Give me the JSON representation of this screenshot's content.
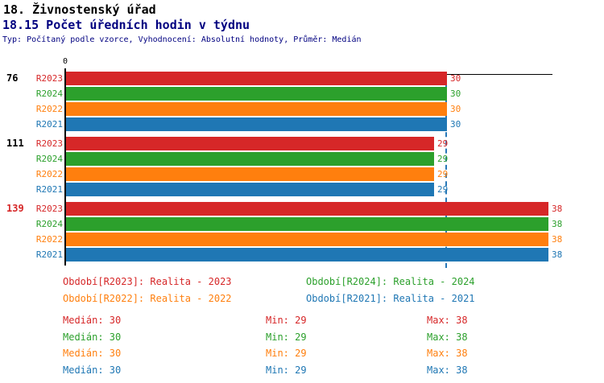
{
  "header": {
    "title_line1": "18. Živnostenský úřad",
    "title_line2": "18.15 Počet úředních hodin v týdnu",
    "meta": "Typ: Počítaný podle vzorce, Vyhodnocení: Absolutní hodnoty, Průměr: Medián"
  },
  "colors": {
    "R2023": "#d62728",
    "R2024": "#2ca02c",
    "R2022": "#ff7f0e",
    "R2021": "#1f77b4",
    "median_line": "#2878b8",
    "axis": "#000000",
    "title": "#000000",
    "subtitle": "#000080",
    "group_label_normal": "#000000",
    "group_label_highlight": "#d62728"
  },
  "chart_data": {
    "type": "bar",
    "orientation": "horizontal",
    "origin_tick_label": "0",
    "xlim": [
      0,
      38.4
    ],
    "median_line_value": 30,
    "series_order": [
      "R2023",
      "R2024",
      "R2022",
      "R2021"
    ],
    "groups": [
      {
        "label": "76",
        "label_color": "#000000",
        "bars": [
          {
            "series": "R2023",
            "value": 30
          },
          {
            "series": "R2024",
            "value": 30
          },
          {
            "series": "R2022",
            "value": 30
          },
          {
            "series": "R2021",
            "value": 30
          }
        ]
      },
      {
        "label": "111",
        "label_color": "#000000",
        "bars": [
          {
            "series": "R2023",
            "value": 29
          },
          {
            "series": "R2024",
            "value": 29
          },
          {
            "series": "R2022",
            "value": 29
          },
          {
            "series": "R2021",
            "value": 29
          }
        ]
      },
      {
        "label": "139",
        "label_color": "#d62728",
        "bars": [
          {
            "series": "R2023",
            "value": 38
          },
          {
            "series": "R2024",
            "value": 38
          },
          {
            "series": "R2022",
            "value": 38
          },
          {
            "series": "R2021",
            "value": 38
          }
        ]
      }
    ]
  },
  "legend": {
    "items": [
      {
        "text": "Období[R2023]: Realita - 2023",
        "series": "R2023"
      },
      {
        "text": "Období[R2024]: Realita - 2024",
        "series": "R2024"
      },
      {
        "text": "Období[R2022]: Realita - 2022",
        "series": "R2022"
      },
      {
        "text": "Období[R2021]: Realita - 2021",
        "series": "R2021"
      }
    ]
  },
  "stats": {
    "rows": [
      {
        "series": "R2023",
        "median": 30,
        "min": 29,
        "max": 38,
        "median_text": "Medián: 30",
        "min_text": "Min: 29",
        "max_text": "Max: 38"
      },
      {
        "series": "R2024",
        "median": 30,
        "min": 29,
        "max": 38,
        "median_text": "Medián: 30",
        "min_text": "Min: 29",
        "max_text": "Max: 38"
      },
      {
        "series": "R2022",
        "median": 30,
        "min": 29,
        "max": 38,
        "median_text": "Medián: 30",
        "min_text": "Min: 29",
        "max_text": "Max: 38"
      },
      {
        "series": "R2021",
        "median": 30,
        "min": 29,
        "max": 38,
        "median_text": "Medián: 30",
        "min_text": "Min: 29",
        "max_text": "Max: 38"
      }
    ]
  }
}
